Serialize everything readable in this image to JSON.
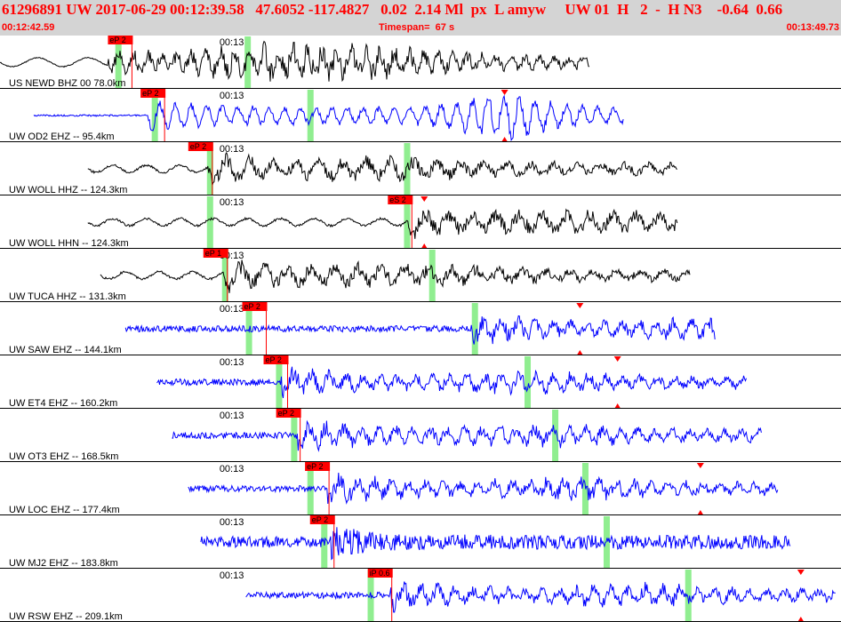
{
  "header": {
    "title": "61296891 UW 2017-06-29 00:12:39.58   47.6052 -117.4827   0.02  2.14 Ml  px  L amyw     UW 01  H   2  -  H N3    -0.64  0.66",
    "start_time": "00:12:42.59",
    "timespan": "Timespan=  67 s",
    "end_time": "00:13:49.73"
  },
  "chart_data": {
    "type": "line",
    "title": "61296891 UW 2017-06-29 00:12:39.58   47.6052 -117.4827   0.02  2.14 Ml  px  L amyw     UW 01  H   2  -  H N3    -0.64  0.66",
    "x_range_seconds": [
      0,
      67
    ],
    "time_tick_label": "00:13",
    "time_tick_seconds": 17.41,
    "traces": [
      {
        "label": "US NEWD BHZ 00 78.0km",
        "color": "#000000",
        "data_start": 0.0,
        "data_end": 47.0,
        "onset": 8.6,
        "pick": {
          "label": "eP 2",
          "time": 8.6
        },
        "green_marks": [
          9.4,
          19.7
        ],
        "red_triangles": [],
        "style": "longperiod"
      },
      {
        "label": "UW OD2 EHZ -- 95.4km",
        "color": "#0000ff",
        "data_start": 2.7,
        "data_end": 49.7,
        "onset": 11.8,
        "pick": {
          "label": "eP 2",
          "time": 11.2
        },
        "green_marks": [
          12.3,
          24.7
        ],
        "red_triangles": [
          40.2
        ],
        "style": "ramp"
      },
      {
        "label": "UW WOLL HHZ -- 124.3km",
        "color": "#000000",
        "data_start": 7.0,
        "data_end": 54.0,
        "onset": 16.6,
        "pick": {
          "label": "eP 2",
          "time": 15.0
        },
        "green_marks": [
          16.7,
          32.4
        ],
        "red_triangles": [],
        "style": "noisyblack"
      },
      {
        "label": "UW WOLL HHN -- 124.3km",
        "color": "#000000",
        "data_start": 7.0,
        "data_end": 54.0,
        "onset": 32.5,
        "pick": {
          "label": "eS 2",
          "time": 30.9
        },
        "green_marks": [
          16.7,
          32.4
        ],
        "red_triangles": [
          33.8
        ],
        "style": "noisyblack"
      },
      {
        "label": "UW TUCA HHZ -- 131.3km",
        "color": "#000000",
        "data_start": 8.0,
        "data_end": 55.0,
        "onset": 17.8,
        "pick": {
          "label": "eP 1",
          "time": 16.2
        },
        "green_marks": [
          17.9,
          34.4
        ],
        "red_triangles": [],
        "style": "noisyblack"
      },
      {
        "label": "UW SAW EHZ -- 144.1km",
        "color": "#0000ff",
        "data_start": 10.0,
        "data_end": 57.0,
        "onset": 37.5,
        "pick": {
          "label": "eP 2",
          "time": 19.3
        },
        "green_marks": [
          19.8,
          37.8
        ],
        "red_triangles": [
          46.2
        ],
        "style": "blue"
      },
      {
        "label": "UW ET4 EHZ -- 160.2km",
        "color": "#0000ff",
        "data_start": 12.5,
        "data_end": 59.5,
        "onset": 22.4,
        "pick": {
          "label": "eP 2",
          "time": 21.0
        },
        "green_marks": [
          22.2,
          42.0
        ],
        "red_triangles": [
          49.2
        ],
        "style": "blue"
      },
      {
        "label": "UW OT3 EHZ -- 168.5km",
        "color": "#0000ff",
        "data_start": 13.7,
        "data_end": 60.7,
        "onset": 23.6,
        "pick": {
          "label": "eP 2",
          "time": 22.0
        },
        "green_marks": [
          23.4,
          44.2
        ],
        "red_triangles": [],
        "style": "blue"
      },
      {
        "label": "UW LOC EHZ -- 177.4km",
        "color": "#0000ff",
        "data_start": 15.0,
        "data_end": 62.0,
        "onset": 26.0,
        "pick": {
          "label": "eP 2",
          "time": 24.3
        },
        "green_marks": [
          24.7,
          46.6
        ],
        "red_triangles": [
          55.8
        ],
        "style": "blue"
      },
      {
        "label": "UW MJ2 EHZ -- 183.8km",
        "color": "#0000ff",
        "data_start": 16.0,
        "data_end": 63.0,
        "onset": 26.3,
        "pick": {
          "label": "eP 2",
          "time": 24.7
        },
        "green_marks": [
          25.8,
          48.3
        ],
        "red_triangles": [],
        "style": "bluedense"
      },
      {
        "label": "UW RSW EHZ -- 209.1km",
        "color": "#0000ff",
        "data_start": 19.6,
        "data_end": 66.6,
        "onset": 31.1,
        "pick": {
          "label": "iP 0.6",
          "time": 29.3
        },
        "green_marks": [
          29.5,
          54.8
        ],
        "red_triangles": [
          63.8
        ],
        "style": "blue"
      }
    ]
  }
}
